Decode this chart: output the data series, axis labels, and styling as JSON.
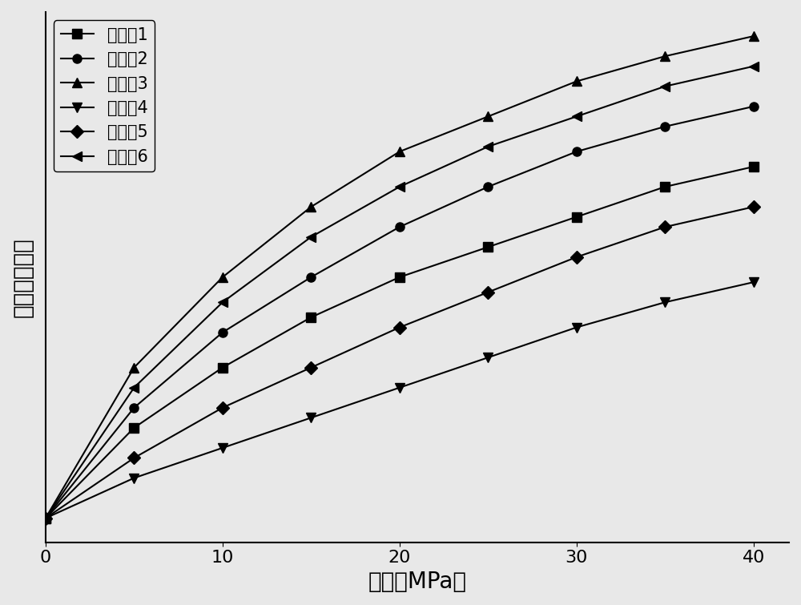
{
  "title": "",
  "xlabel": "压强（MPa）",
  "ylabel": "相对发光亮度",
  "x_ticks": [
    0,
    10,
    20,
    30,
    40
  ],
  "xlim": [
    0,
    42
  ],
  "background_color": "#e8e8e8",
  "series": [
    {
      "label": "实施例1",
      "marker": "s",
      "x": [
        0,
        5,
        10,
        15,
        20,
        25,
        30,
        35,
        40
      ],
      "y": [
        0.1,
        0.28,
        0.4,
        0.5,
        0.58,
        0.64,
        0.7,
        0.76,
        0.8
      ]
    },
    {
      "label": "实施例2",
      "marker": "o",
      "x": [
        0,
        5,
        10,
        15,
        20,
        25,
        30,
        35,
        40
      ],
      "y": [
        0.1,
        0.32,
        0.47,
        0.58,
        0.68,
        0.76,
        0.83,
        0.88,
        0.92
      ]
    },
    {
      "label": "实施例3",
      "marker": "^",
      "x": [
        0,
        5,
        10,
        15,
        20,
        25,
        30,
        35,
        40
      ],
      "y": [
        0.1,
        0.4,
        0.58,
        0.72,
        0.83,
        0.9,
        0.97,
        1.02,
        1.06
      ]
    },
    {
      "label": "实施例4",
      "marker": "v",
      "x": [
        0,
        5,
        10,
        15,
        20,
        25,
        30,
        35,
        40
      ],
      "y": [
        0.1,
        0.18,
        0.24,
        0.3,
        0.36,
        0.42,
        0.48,
        0.53,
        0.57
      ]
    },
    {
      "label": "实施例5",
      "marker": "D",
      "x": [
        0,
        5,
        10,
        15,
        20,
        25,
        30,
        35,
        40
      ],
      "y": [
        0.1,
        0.22,
        0.32,
        0.4,
        0.48,
        0.55,
        0.62,
        0.68,
        0.72
      ]
    },
    {
      "label": "实施例6",
      "marker": "<",
      "x": [
        0,
        5,
        10,
        15,
        20,
        25,
        30,
        35,
        40
      ],
      "y": [
        0.1,
        0.36,
        0.53,
        0.66,
        0.76,
        0.84,
        0.9,
        0.96,
        1.0
      ]
    }
  ],
  "line_color": "#000000",
  "marker_size": 8,
  "line_width": 1.5,
  "font_size_label": 20,
  "font_size_tick": 16,
  "font_size_legend": 15
}
